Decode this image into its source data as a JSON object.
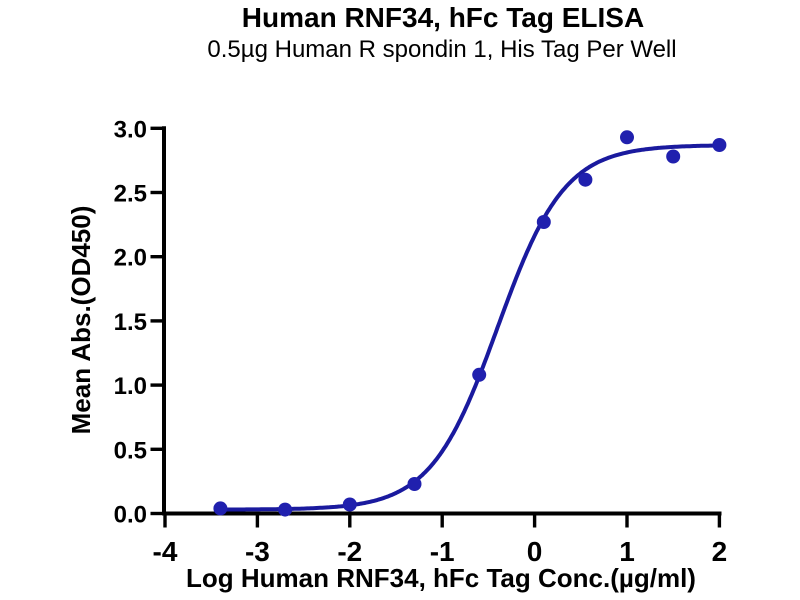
{
  "chart_data": {
    "type": "scatter",
    "title": "Human RNF34, hFc Tag ELISA",
    "subtitle": "0.5µg Human R spondin 1, His Tag Per Well",
    "xlabel": "Log Human RNF34, hFc Tag Conc.(µg/ml)",
    "ylabel": "Mean Abs.(OD450)",
    "xlim": [
      -4,
      2
    ],
    "ylim": [
      0,
      3
    ],
    "x_ticks": [
      -4,
      -3,
      -2,
      -1,
      0,
      1,
      2
    ],
    "x_tick_labels": [
      "-4",
      "-3",
      "-2",
      "-1",
      "0",
      "1",
      "2"
    ],
    "y_ticks": [
      0.0,
      0.5,
      1.0,
      1.5,
      2.0,
      2.5,
      3.0
    ],
    "y_tick_labels": [
      "0.0",
      "0.5",
      "1.0",
      "1.5",
      "2.0",
      "2.5",
      "3.0"
    ],
    "grid": false,
    "legend": "none",
    "points": {
      "log_x": [
        -3.4,
        -2.7,
        -2.0,
        -1.3,
        -0.6,
        0.1,
        0.55,
        1.0,
        1.5,
        2.0
      ],
      "od450": [
        0.04,
        0.03,
        0.07,
        0.23,
        1.08,
        2.27,
        2.6,
        2.93,
        2.78,
        2.87
      ]
    },
    "fit_curve": {
      "model": "4PL",
      "bottom": 0.03,
      "top": 2.87,
      "logEC50": -0.4,
      "hillslope": 1.2,
      "x_range": [
        -3.4,
        2.0
      ]
    },
    "marker": {
      "shape": "circle",
      "radius": 7
    },
    "colors": {
      "point": "#2020ae",
      "curve": "#1a1a9e",
      "axis": "#000000",
      "background": "#ffffff"
    }
  }
}
